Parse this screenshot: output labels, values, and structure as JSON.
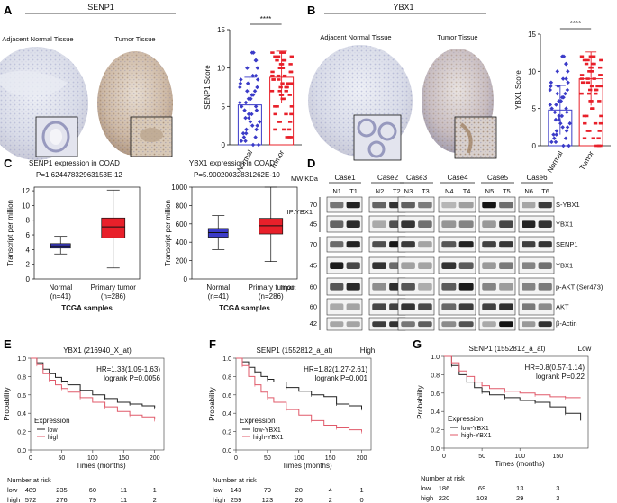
{
  "panel_labels": {
    "A": "A",
    "B": "B",
    "C": "C",
    "D": "D",
    "E": "E",
    "F": "F",
    "G": "G"
  },
  "panelA": {
    "gene": "SENP1",
    "tissue_left": "Adjacent Normal Tissue",
    "tissue_right": "Tumor Tissue",
    "chart_title_sig": "****",
    "ylabel": "SENP1 Score",
    "yticks": [
      "0",
      "5",
      "10",
      "15"
    ],
    "xticks": [
      "Normal",
      "Tumor"
    ]
  },
  "panelB": {
    "gene": "YBX1",
    "tissue_left": "Adjacent Normal Tissue",
    "tissue_right": "Tumor Tissue",
    "chart_title_sig": "****",
    "ylabel": "YBX1 Score",
    "yticks": [
      "0",
      "5",
      "10",
      "15"
    ],
    "xticks": [
      "Normal",
      "Tumor"
    ]
  },
  "panelC": {
    "left": {
      "title": "SENP1 expression in COAD",
      "pvalue": "P=1.62447832963153E-12",
      "ylabel": "Transcript per million",
      "yticks": [
        "0",
        "2",
        "4",
        "6",
        "8",
        "10",
        "12"
      ],
      "groups": [
        "Normal",
        "Primary tumor"
      ],
      "ns": [
        "(n=41)",
        "(n=286)"
      ],
      "xlabel": "TCGA samples"
    },
    "right": {
      "title": "YBX1 expression in COAD",
      "pvalue": "P=5.90020032831262E-10",
      "ylabel": "Transcript per million",
      "yticks": [
        "0",
        "200",
        "400",
        "600",
        "800",
        "1000"
      ],
      "groups": [
        "Normal",
        "Primary tumor"
      ],
      "ns": [
        "(n=41)",
        "(n=286)"
      ],
      "xlabel": "TCGA samples"
    }
  },
  "panelD": {
    "mw_label": "MW:KDa",
    "cases": [
      "Case1",
      "Case2",
      "Case3",
      "Case4",
      "Case5",
      "Case6"
    ],
    "lanes": [
      "N1",
      "T1",
      "N2",
      "T2",
      "N3",
      "T3",
      "N4",
      "T4",
      "N5",
      "T5",
      "N6",
      "T6"
    ],
    "ip_label": "IP:YBX1",
    "input_label": "Input",
    "rows": [
      {
        "mw": "70",
        "name": "S-YBX1"
      },
      {
        "mw": "45",
        "name": "YBX1"
      },
      {
        "mw": "70",
        "name": "SENP1"
      },
      {
        "mw": "45",
        "name": "YBX1"
      },
      {
        "mw": "60",
        "name": "p-AKT (Ser473)"
      },
      {
        "mw": "60",
        "name": "AKT"
      },
      {
        "mw": "42",
        "name": "β-Actin"
      }
    ]
  },
  "panelE": {
    "title": "YBX1 (216940_X_at)",
    "hr": "HR=1.33(1.09-1.63)",
    "logrank": "logrank P=0.0056",
    "ylabel": "Probability",
    "xlabel": "Times (months)",
    "yticks": [
      "0.0",
      "0.2",
      "0.4",
      "0.6",
      "0.8",
      "1.0"
    ],
    "xticks": [
      "0",
      "50",
      "100",
      "150",
      "200"
    ],
    "legend_title": "Expression",
    "legend": [
      "low",
      "high"
    ],
    "risk_title": "Number at risk",
    "risk_rows": [
      {
        "name": "low",
        "values": [
          "489",
          "235",
          "60",
          "11",
          "1"
        ]
      },
      {
        "name": "high",
        "values": [
          "572",
          "276",
          "79",
          "11",
          "2"
        ]
      }
    ]
  },
  "panelF": {
    "title": "SENP1 (1552812_a_at)",
    "subtitle": "High",
    "hr": "HR=1.82(1.27-2.61)",
    "logrank": "logrank P=0.001",
    "ylabel": "Probability",
    "xlabel": "Times (months)",
    "yticks": [
      "0.0",
      "0.2",
      "0.4",
      "0.6",
      "0.8",
      "1.0"
    ],
    "xticks": [
      "0",
      "50",
      "100",
      "150",
      "200"
    ],
    "legend_title": "Expression",
    "legend": [
      "low-YBX1",
      "high-YBX1"
    ],
    "risk_title": "Number at risk",
    "risk_rows": [
      {
        "name": "low",
        "values": [
          "143",
          "79",
          "20",
          "4",
          "1"
        ]
      },
      {
        "name": "high",
        "values": [
          "259",
          "123",
          "26",
          "2",
          "0"
        ]
      }
    ]
  },
  "panelG": {
    "title": "SENP1 (1552812_a_at)",
    "subtitle": "Low",
    "hr": "HR=0.8(0.57-1.14)",
    "logrank": "logrank P=0.22",
    "ylabel": "Probability",
    "xlabel": "Times (months)",
    "yticks": [
      "0.0",
      "0.2",
      "0.4",
      "0.6",
      "0.8",
      "1.0"
    ],
    "xticks": [
      "0",
      "50",
      "100",
      "150"
    ],
    "legend_title": "Expression",
    "legend": [
      "low-YBX1",
      "high-YBX1"
    ],
    "risk_title": "Number at risk",
    "risk_rows": [
      {
        "name": "low",
        "values": [
          "186",
          "69",
          "13",
          "3"
        ]
      },
      {
        "name": "high",
        "values": [
          "220",
          "103",
          "29",
          "3"
        ]
      }
    ]
  },
  "colors": {
    "red": "#e8202a",
    "blue": "#3b3bc8",
    "gray": "#444444",
    "pink": "#e05a6a"
  },
  "chart_data": [
    {
      "type": "scatter",
      "title": "SENP1 Score",
      "categories": [
        "Normal",
        "Tumor"
      ],
      "series": [
        {
          "name": "Normal",
          "mean": 5.2,
          "sd": 3.6,
          "values": [
            0,
            0.5,
            1,
            1.5,
            2,
            2.5,
            3,
            3.5,
            4,
            4.5,
            5,
            5.5,
            6,
            6.5,
            7,
            7.5,
            8,
            8.5,
            9,
            10,
            11,
            12
          ]
        },
        {
          "name": "Tumor",
          "mean": 8.8,
          "sd": 3.4,
          "values": [
            1,
            2,
            3,
            4,
            5,
            6,
            6.5,
            7,
            7.5,
            8,
            8.5,
            9,
            9.5,
            10,
            10.5,
            11,
            11.5,
            12
          ]
        }
      ],
      "ylabel": "SENP1 Score",
      "ylim": [
        0,
        15
      ],
      "annotation": "****"
    },
    {
      "type": "scatter",
      "title": "YBX1 Score",
      "categories": [
        "Normal",
        "Tumor"
      ],
      "series": [
        {
          "name": "Normal",
          "mean": 4.8,
          "sd": 3.3,
          "values": [
            0,
            0.5,
            1,
            1.5,
            2,
            2.5,
            3,
            3.5,
            4,
            4.5,
            5,
            5.5,
            6,
            6.5,
            7,
            7.5,
            8,
            8.5,
            9,
            10,
            11,
            12
          ]
        },
        {
          "name": "Tumor",
          "mean": 9.0,
          "sd": 3.6,
          "values": [
            0,
            1,
            2,
            3,
            4,
            5,
            6,
            7,
            7.5,
            8,
            8.5,
            9,
            9.5,
            10,
            10.5,
            11,
            11.5,
            12
          ]
        }
      ],
      "ylabel": "YBX1 Score",
      "ylim": [
        0,
        15
      ],
      "annotation": "****"
    },
    {
      "type": "box",
      "title": "SENP1 expression in COAD",
      "categories": [
        "Normal",
        "Primary tumor"
      ],
      "boxes": [
        {
          "min": 3.4,
          "q1": 4.2,
          "median": 4.5,
          "q3": 4.8,
          "max": 5.8
        },
        {
          "min": 1.5,
          "q1": 5.6,
          "median": 7.1,
          "q3": 8.3,
          "max": 12.1
        }
      ],
      "ylim": [
        0,
        12.5
      ],
      "ylabel": "Transcript per million"
    },
    {
      "type": "box",
      "title": "YBX1 expression in COAD",
      "categories": [
        "Normal",
        "Primary tumor"
      ],
      "boxes": [
        {
          "min": 320,
          "q1": 455,
          "median": 505,
          "q3": 550,
          "max": 690
        },
        {
          "min": 190,
          "q1": 490,
          "median": 580,
          "q3": 660,
          "max": 1000
        }
      ],
      "ylim": [
        0,
        1000
      ],
      "ylabel": "Transcript per million"
    },
    {
      "type": "line",
      "title": "YBX1 (216940_X_at)",
      "xlim": [
        0,
        215
      ],
      "ylim": [
        0,
        1
      ],
      "series": [
        {
          "name": "low",
          "x": [
            0,
            10,
            20,
            30,
            40,
            50,
            60,
            80,
            100,
            120,
            140,
            160,
            180,
            200
          ],
          "y": [
            1,
            0.95,
            0.88,
            0.83,
            0.79,
            0.75,
            0.71,
            0.65,
            0.6,
            0.56,
            0.52,
            0.5,
            0.48,
            0.46
          ]
        },
        {
          "name": "high",
          "x": [
            0,
            10,
            20,
            30,
            40,
            50,
            60,
            80,
            100,
            120,
            140,
            160,
            180,
            200
          ],
          "y": [
            1,
            0.93,
            0.83,
            0.76,
            0.71,
            0.67,
            0.63,
            0.57,
            0.52,
            0.47,
            0.42,
            0.38,
            0.36,
            0.33
          ]
        }
      ]
    },
    {
      "type": "line",
      "title": "SENP1 (1552812_a_at) High",
      "xlim": [
        0,
        215
      ],
      "ylim": [
        0,
        1
      ],
      "series": [
        {
          "name": "low-YBX1",
          "x": [
            0,
            10,
            20,
            30,
            40,
            50,
            60,
            80,
            100,
            120,
            140,
            160,
            180,
            200
          ],
          "y": [
            1,
            0.96,
            0.9,
            0.85,
            0.8,
            0.77,
            0.74,
            0.68,
            0.64,
            0.6,
            0.58,
            0.5,
            0.48,
            0.45
          ]
        },
        {
          "name": "high-YBX1",
          "x": [
            0,
            10,
            20,
            30,
            40,
            50,
            60,
            80,
            100,
            120,
            140,
            160,
            180,
            200
          ],
          "y": [
            1,
            0.92,
            0.8,
            0.71,
            0.63,
            0.57,
            0.52,
            0.44,
            0.38,
            0.32,
            0.27,
            0.24,
            0.22,
            0.2
          ]
        }
      ]
    },
    {
      "type": "line",
      "title": "SENP1 (1552812_a_at) Low",
      "xlim": [
        0,
        190
      ],
      "ylim": [
        0,
        1
      ],
      "series": [
        {
          "name": "low-YBX1",
          "x": [
            0,
            10,
            20,
            30,
            40,
            50,
            60,
            80,
            100,
            120,
            140,
            160,
            180
          ],
          "y": [
            1,
            0.9,
            0.8,
            0.72,
            0.66,
            0.61,
            0.58,
            0.55,
            0.52,
            0.5,
            0.45,
            0.38,
            0.3
          ]
        },
        {
          "name": "high-YBX1",
          "x": [
            0,
            10,
            20,
            30,
            40,
            50,
            60,
            80,
            100,
            120,
            140,
            160,
            180
          ],
          "y": [
            1,
            0.93,
            0.84,
            0.78,
            0.72,
            0.68,
            0.65,
            0.62,
            0.6,
            0.58,
            0.56,
            0.55,
            0.55
          ]
        }
      ]
    }
  ]
}
